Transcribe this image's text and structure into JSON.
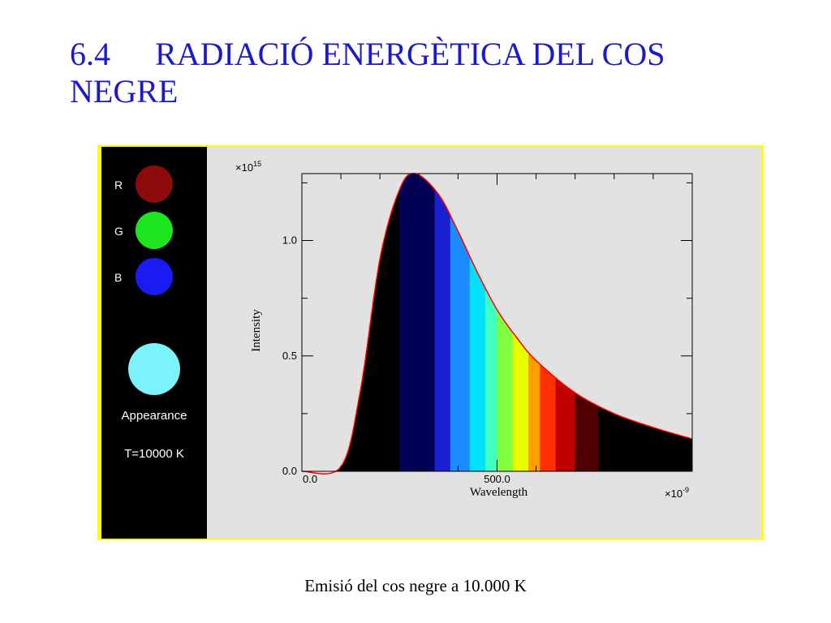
{
  "title": {
    "number": "6.4",
    "line1": "RADIACIÓ ENERGÈTICA DEL COS",
    "line2": "NEGRE"
  },
  "caption": "Emisió del cos negre a 10.000 K",
  "sidebar": {
    "channels": [
      {
        "label": "R",
        "color": "#8b0a0a"
      },
      {
        "label": "G",
        "color": "#1ee61e"
      },
      {
        "label": "B",
        "color": "#1a1af2"
      }
    ],
    "appearance_color": "#7cf2fb",
    "appearance_label": "Appearance",
    "temperature_label": "T=10000 K"
  },
  "colors": {
    "title": "#1a1acc",
    "frame": "#ffff00",
    "curve_outline": "#ff0000"
  },
  "chart_data": {
    "type": "area",
    "xlabel": "Wavelength",
    "ylabel": "Intensity",
    "x_multiplier": "×10",
    "x_multiplier_exp": "-9",
    "y_multiplier": "×10",
    "y_multiplier_exp": "15",
    "xlim": [
      0,
      1000
    ],
    "ylim": [
      0,
      1.29
    ],
    "x_ticks": [
      {
        "value": 0,
        "label": "0.0"
      },
      {
        "value": 500,
        "label": "500.0"
      }
    ],
    "y_ticks": [
      {
        "value": 0,
        "label": "0.0"
      },
      {
        "value": 0.5,
        "label": "0.5"
      },
      {
        "value": 1.0,
        "label": "1.0"
      }
    ],
    "temperature_K": 10000,
    "peak_wavelength_nm": 290,
    "peak_intensity": 1.29,
    "x": [
      0,
      100,
      150,
      200,
      250,
      290,
      350,
      400,
      450,
      500,
      550,
      600,
      700,
      800,
      900,
      1000
    ],
    "y": [
      0.0,
      0.02,
      0.35,
      0.92,
      1.22,
      1.29,
      1.2,
      1.04,
      0.86,
      0.7,
      0.58,
      0.48,
      0.34,
      0.25,
      0.19,
      0.14
    ],
    "color_bands": [
      {
        "from": 0,
        "to": 250,
        "color": "#000000"
      },
      {
        "from": 250,
        "to": 340,
        "color": "#000055"
      },
      {
        "from": 340,
        "to": 380,
        "color": "#1a20d0"
      },
      {
        "from": 380,
        "to": 430,
        "color": "#1a8cff"
      },
      {
        "from": 430,
        "to": 470,
        "color": "#00e0ff"
      },
      {
        "from": 470,
        "to": 500,
        "color": "#40ffc0"
      },
      {
        "from": 500,
        "to": 540,
        "color": "#80ff40"
      },
      {
        "from": 540,
        "to": 580,
        "color": "#e8ff00"
      },
      {
        "from": 580,
        "to": 610,
        "color": "#ffa000"
      },
      {
        "from": 610,
        "to": 650,
        "color": "#ff3000"
      },
      {
        "from": 650,
        "to": 700,
        "color": "#c00000"
      },
      {
        "from": 700,
        "to": 760,
        "color": "#500000"
      },
      {
        "from": 760,
        "to": 1000,
        "color": "#000000"
      }
    ]
  }
}
